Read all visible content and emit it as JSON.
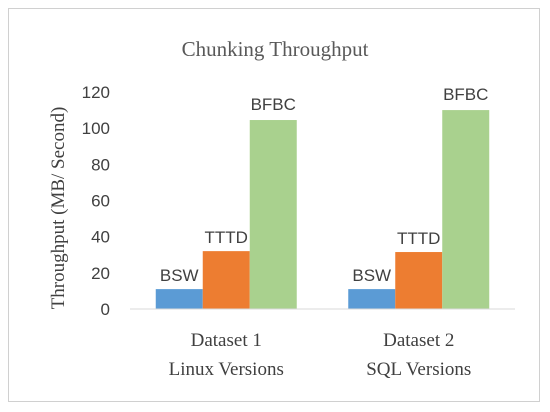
{
  "chart_data": {
    "type": "bar",
    "title": "Chunking Throughput",
    "ylabel": "Throughput (MB/ Second)",
    "xlabel": "",
    "ylim": [
      0,
      120
    ],
    "yticks": [
      0,
      20,
      40,
      60,
      80,
      100,
      120
    ],
    "grid": false,
    "legend": "none",
    "categories": [
      [
        "Dataset 1",
        "Linux Versions"
      ],
      [
        "Dataset 2",
        "SQL Versions"
      ]
    ],
    "series": [
      {
        "name": "BSW",
        "color": "#5b9bd5",
        "values": [
          11,
          11
        ]
      },
      {
        "name": "TTTD",
        "color": "#ed7d31",
        "values": [
          32,
          31.5
        ]
      },
      {
        "name": "BFBC",
        "color": "#a9d18e",
        "values": [
          104.5,
          110
        ]
      }
    ]
  }
}
